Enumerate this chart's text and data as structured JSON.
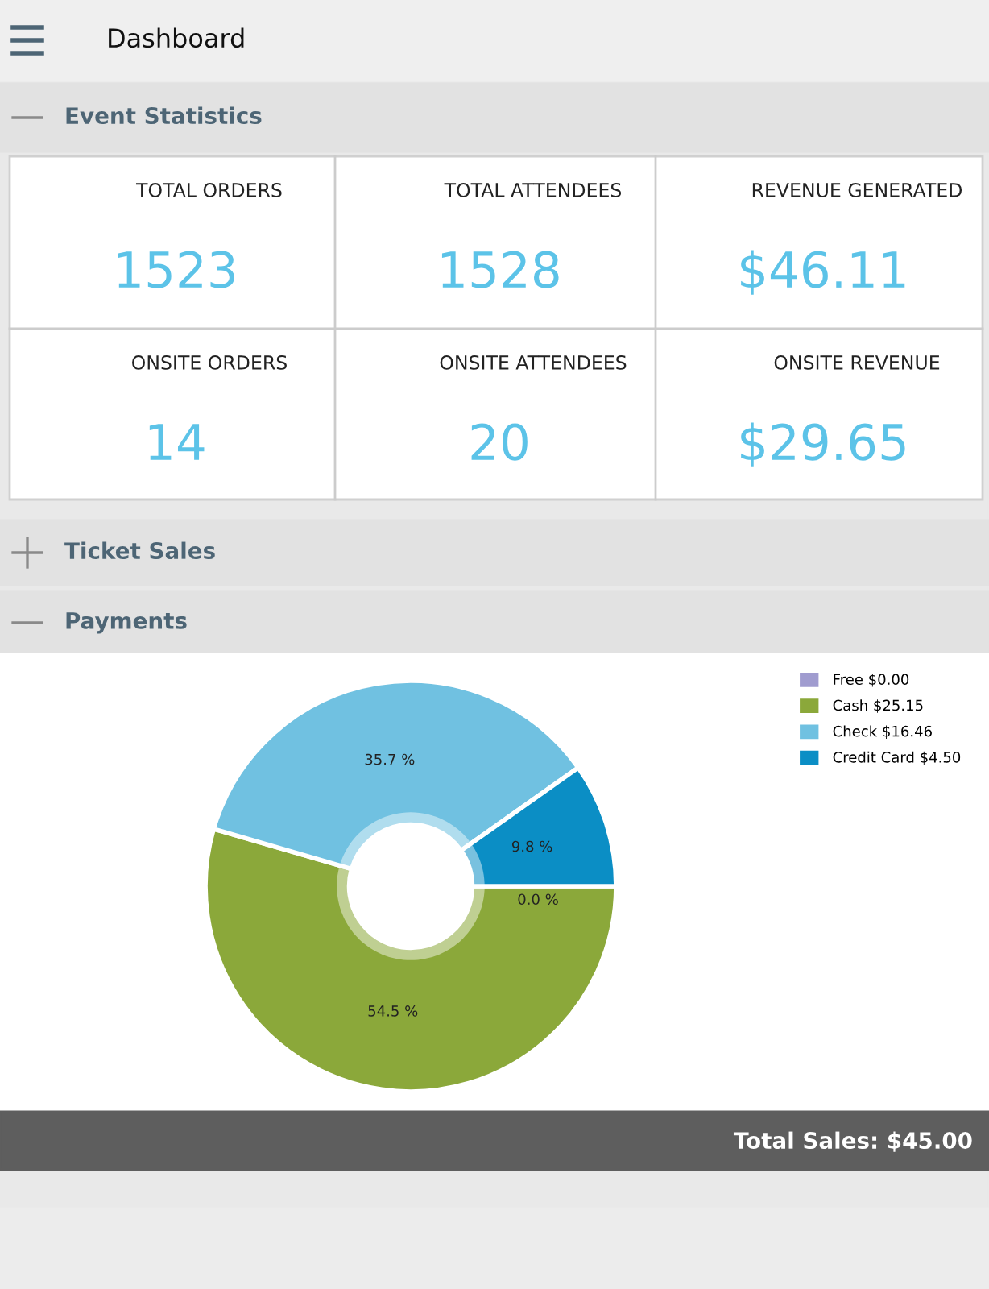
{
  "chart_data": [
    {
      "type": "other",
      "title": "Dashboard"
    },
    {
      "type": "other",
      "title": "Event Statistics",
      "annotations": [
        "TOTAL ORDERS",
        "1523",
        "TOTAL ATTENDEES",
        "1528",
        "REVENUE GENERATED",
        "$46.11",
        "ONSITE ORDERS",
        "14",
        "ONSITE ATTENDEES",
        "20",
        "ONSITE REVENUE",
        "$29.65"
      ]
    },
    {
      "type": "other",
      "title": "Ticket Sales"
    },
    {
      "type": "donut",
      "title": "Payments",
      "categories": [
        "Free $0.00",
        "Cash $25.15",
        "Check $16.46",
        "Credit Card $4.50"
      ],
      "values": [
        0.0,
        54.5,
        35.7,
        9.8
      ],
      "colors": [
        "#a09ccf",
        "#8ba83a",
        "#70c1e1",
        "#0b8ec5"
      ],
      "value_labels": [
        "0.0 %",
        "54.5 %",
        "35.7 %",
        "9.8 %"
      ],
      "legend": "top right",
      "annotations": [
        "Total Sales: $45.00"
      ]
    }
  ]
}
